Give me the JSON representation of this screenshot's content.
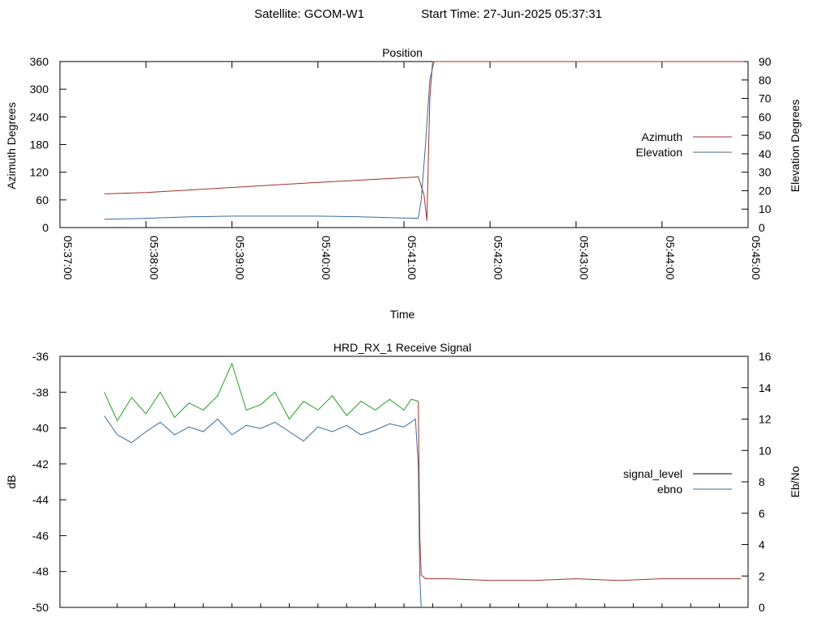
{
  "header": {
    "satellite_label": "Satellite: GCOM-W1",
    "start_time_label": "Start Time: 27-Jun-2025 05:37:31"
  },
  "colors": {
    "azimuth": "#a0302a",
    "elevation": "#3a6b9a",
    "signal_level": "#000000",
    "ebno": "#3a6b9a",
    "rx_green": "#20a020",
    "rx_red": "#a0302a"
  },
  "chart_data": [
    {
      "type": "line",
      "title": "Position",
      "xlabel": "Time",
      "ylabel": "Azimuth Degrees",
      "y2label": "Elevation Degrees",
      "xlim": [
        "05:37:00",
        "05:45:00"
      ],
      "ylim": [
        0,
        360
      ],
      "y2lim": [
        0,
        90
      ],
      "x_ticks": [
        "05:37:00",
        "05:38:00",
        "05:39:00",
        "05:40:00",
        "05:41:00",
        "05:42:00",
        "05:43:00",
        "05:44:00",
        "05:45:00"
      ],
      "y_ticks": [
        0,
        60,
        120,
        180,
        240,
        300,
        360
      ],
      "y2_ticks": [
        0,
        10,
        20,
        30,
        40,
        50,
        60,
        70,
        80,
        90
      ],
      "legend": "right",
      "series": [
        {
          "name": "Azimuth",
          "axis": "y",
          "points": [
            [
              "05:37:31",
              73
            ],
            [
              "05:38:00",
              76
            ],
            [
              "05:39:00",
              87
            ],
            [
              "05:40:00",
              98
            ],
            [
              "05:41:00",
              108
            ],
            [
              "05:41:10",
              110
            ],
            [
              "05:41:14",
              70
            ],
            [
              "05:41:16",
              15
            ],
            [
              "05:41:18",
              280
            ],
            [
              "05:41:20",
              360
            ],
            [
              "05:42:00",
              360
            ],
            [
              "05:43:00",
              360
            ],
            [
              "05:44:00",
              360
            ],
            [
              "05:44:57",
              360
            ]
          ]
        },
        {
          "name": "Elevation",
          "axis": "y2",
          "points": [
            [
              "05:37:31",
              4.5
            ],
            [
              "05:38:00",
              5.0
            ],
            [
              "05:38:30",
              5.8
            ],
            [
              "05:39:00",
              6.2
            ],
            [
              "05:40:00",
              6.2
            ],
            [
              "05:40:30",
              5.8
            ],
            [
              "05:41:00",
              5.2
            ],
            [
              "05:41:10",
              5.0
            ],
            [
              "05:41:12",
              15
            ],
            [
              "05:41:15",
              45
            ],
            [
              "05:41:18",
              80
            ],
            [
              "05:41:21",
              90
            ]
          ]
        }
      ]
    },
    {
      "type": "line",
      "title": "HRD_RX_1 Receive Signal",
      "ylabel": "dB",
      "y2label": "Eb/No",
      "xlim": [
        "05:37:00",
        "05:45:00"
      ],
      "ylim": [
        -50,
        -36
      ],
      "y2lim": [
        0,
        16
      ],
      "y_ticks": [
        -50,
        -48,
        -46,
        -44,
        -42,
        -40,
        -38,
        -36
      ],
      "y2_ticks": [
        0,
        2,
        4,
        6,
        8,
        10,
        12,
        14,
        16
      ],
      "legend": "right",
      "series": [
        {
          "name": "signal_level",
          "axis": "y",
          "points": []
        },
        {
          "name": "ebno",
          "axis": "y2",
          "points": [
            [
              "05:37:31",
              12.2
            ],
            [
              "05:37:40",
              11.0
            ],
            [
              "05:37:50",
              10.5
            ],
            [
              "05:38:00",
              11.2
            ],
            [
              "05:38:10",
              11.8
            ],
            [
              "05:38:20",
              11.0
            ],
            [
              "05:38:30",
              11.5
            ],
            [
              "05:38:40",
              11.2
            ],
            [
              "05:38:50",
              12.0
            ],
            [
              "05:39:00",
              11.0
            ],
            [
              "05:39:10",
              11.6
            ],
            [
              "05:39:20",
              11.4
            ],
            [
              "05:39:30",
              11.8
            ],
            [
              "05:39:40",
              11.2
            ],
            [
              "05:39:50",
              10.6
            ],
            [
              "05:40:00",
              11.5
            ],
            [
              "05:40:10",
              11.2
            ],
            [
              "05:40:20",
              11.6
            ],
            [
              "05:40:30",
              11.0
            ],
            [
              "05:40:40",
              11.3
            ],
            [
              "05:40:50",
              11.7
            ],
            [
              "05:41:00",
              11.5
            ],
            [
              "05:41:08",
              12.0
            ],
            [
              "05:41:10",
              9.0
            ],
            [
              "05:41:11",
              2.0
            ],
            [
              "05:41:12",
              0.0
            ]
          ]
        },
        {
          "axis": "y",
          "points": [
            [
              "05:37:31",
              -38.0
            ],
            [
              "05:37:40",
              -39.6
            ],
            [
              "05:37:50",
              -38.3
            ],
            [
              "05:38:00",
              -39.2
            ],
            [
              "05:38:10",
              -38.0
            ],
            [
              "05:38:20",
              -39.4
            ],
            [
              "05:38:30",
              -38.6
            ],
            [
              "05:38:40",
              -39.0
            ],
            [
              "05:38:50",
              -38.2
            ],
            [
              "05:39:00",
              -36.4
            ],
            [
              "05:39:10",
              -39.0
            ],
            [
              "05:39:20",
              -38.7
            ],
            [
              "05:39:30",
              -38.0
            ],
            [
              "05:39:40",
              -39.5
            ],
            [
              "05:39:50",
              -38.5
            ],
            [
              "05:40:00",
              -39.0
            ],
            [
              "05:40:10",
              -38.2
            ],
            [
              "05:40:20",
              -39.3
            ],
            [
              "05:40:30",
              -38.5
            ],
            [
              "05:40:40",
              -39.0
            ],
            [
              "05:40:50",
              -38.4
            ],
            [
              "05:41:00",
              -39.0
            ],
            [
              "05:41:05",
              -38.4
            ],
            [
              "05:41:10",
              -38.5
            ]
          ]
        },
        {
          "axis": "y",
          "points": [
            [
              "05:41:10",
              -38.5
            ],
            [
              "05:41:11",
              -46.0
            ],
            [
              "05:41:12",
              -48.2
            ],
            [
              "05:41:15",
              -48.4
            ],
            [
              "05:41:30",
              -48.4
            ],
            [
              "05:42:00",
              -48.5
            ],
            [
              "05:42:30",
              -48.5
            ],
            [
              "05:43:00",
              -48.4
            ],
            [
              "05:43:30",
              -48.5
            ],
            [
              "05:44:00",
              -48.4
            ],
            [
              "05:44:30",
              -48.4
            ],
            [
              "05:44:55",
              -48.4
            ]
          ]
        }
      ]
    }
  ]
}
